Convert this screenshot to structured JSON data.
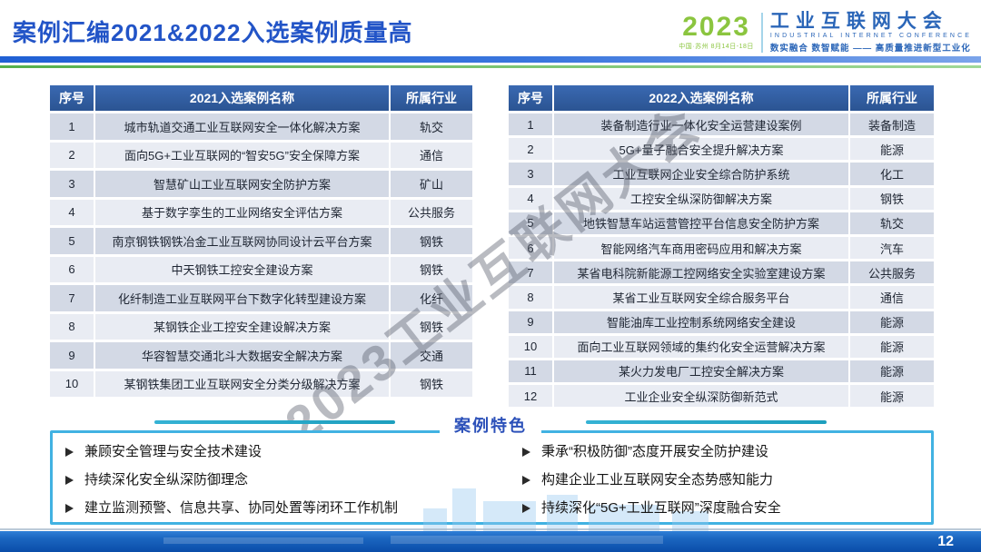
{
  "slide": {
    "title": "案例汇编2021&2022入选案例质量高",
    "page_number": "12"
  },
  "logo": {
    "year": "2023",
    "year_sub": "中国·苏州 8月14日-18日",
    "name_cn": "工业互联网大会",
    "name_en": "INDUSTRIAL INTERNET CONFERENCE",
    "tagline": "数实融合 数智赋能 —— 高质量推进新型工业化"
  },
  "watermark": "2023工业互联网大会",
  "tables": [
    {
      "headers": [
        "序号",
        "2021入选案例名称",
        "所属行业"
      ],
      "rows": [
        [
          "1",
          "城市轨道交通工业互联网安全一体化解决方案",
          "轨交"
        ],
        [
          "2",
          "面向5G+工业互联网的“智安5G”安全保障方案",
          "通信"
        ],
        [
          "3",
          "智慧矿山工业互联网安全防护方案",
          "矿山"
        ],
        [
          "4",
          "基于数字孪生的工业网络安全评估方案",
          "公共服务"
        ],
        [
          "5",
          "南京钢铁钢铁冶金工业互联网协同设计云平台方案",
          "钢铁"
        ],
        [
          "6",
          "中天钢铁工控安全建设方案",
          "钢铁"
        ],
        [
          "7",
          "化纤制造工业互联网平台下数字化转型建设方案",
          "化纤"
        ],
        [
          "8",
          "某钢铁企业工控安全建设解决方案",
          "钢铁"
        ],
        [
          "9",
          "华容智慧交通北斗大数据安全解决方案",
          "交通"
        ],
        [
          "10",
          "某钢铁集团工业互联网安全分类分级解决方案",
          "钢铁"
        ]
      ]
    },
    {
      "headers": [
        "序号",
        "2022入选案例名称",
        "所属行业"
      ],
      "rows": [
        [
          "1",
          "装备制造行业一体化安全运营建设案例",
          "装备制造"
        ],
        [
          "2",
          "5G+量子融合安全提升解决方案",
          "能源"
        ],
        [
          "3",
          "工业互联网企业安全综合防护系统",
          "化工"
        ],
        [
          "4",
          "工控安全纵深防御解决方案",
          "钢铁"
        ],
        [
          "5",
          "地铁智慧车站运营管控平台信息安全防护方案",
          "轨交"
        ],
        [
          "6",
          "智能网络汽车商用密码应用和解决方案",
          "汽车"
        ],
        [
          "7",
          "某省电科院新能源工控网络安全实验室建设方案",
          "公共服务"
        ],
        [
          "8",
          "某省工业互联网安全综合服务平台",
          "通信"
        ],
        [
          "9",
          "智能油库工业控制系统网络安全建设",
          "能源"
        ],
        [
          "10",
          "面向工业互联网领域的集约化安全运营解决方案",
          "能源"
        ],
        [
          "11",
          "某火力发电厂工控安全解决方案",
          "能源"
        ],
        [
          "12",
          "工业企业安全纵深防御新范式",
          "能源"
        ]
      ]
    }
  ],
  "features": {
    "title": "案例特色",
    "bullet_icon": "➢",
    "left": [
      "兼顾安全管理与安全技术建设",
      "持续深化安全纵深防御理念",
      "建立监测预警、信息共享、协同处置等闭环工作机制"
    ],
    "right": [
      "秉承“积极防御”态度开展安全防护建设",
      "构建企业工业互联网安全态势感知能力",
      "持续深化“5G+工业互联网”深度融合安全"
    ]
  },
  "colors": {
    "title_blue": "#2254c7",
    "table_header_blue": "#2f5ba3",
    "row_dark": "#d3d9e5",
    "row_light": "#e9ecf3",
    "box_border_cyan": "#41b2e2",
    "teal_line": "#2fb2cf",
    "footer_blue": "#0a4da9",
    "logo_green": "#8bc53f",
    "logo_blue": "#2b66b8"
  }
}
